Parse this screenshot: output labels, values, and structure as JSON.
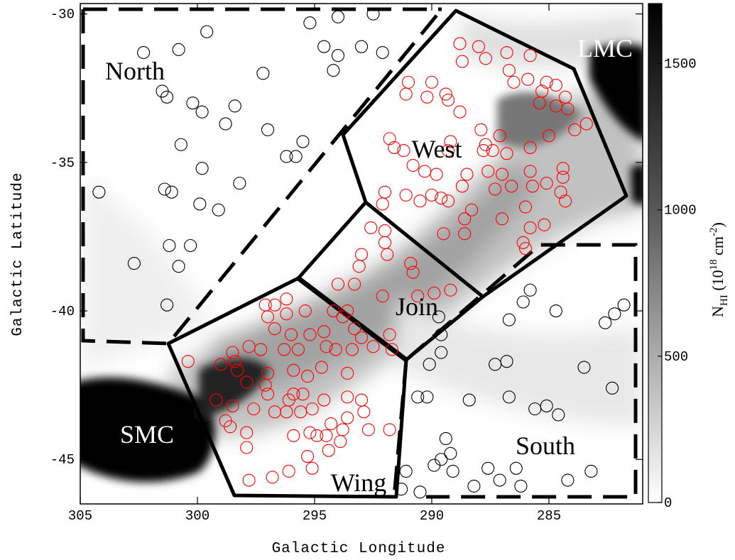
{
  "chart_data": {
    "type": "scatter",
    "x_label": "Galactic Longitude",
    "y_label": "Galactic Latitude",
    "xlim": [
      305,
      281
    ],
    "ylim": [
      -46.5,
      -29.65
    ],
    "xticks": [
      305,
      300,
      295,
      290,
      285
    ],
    "yticks": [
      -30,
      -35,
      -40,
      -45
    ],
    "region_labels": [
      "North",
      "LMC",
      "West",
      "Join",
      "SMC",
      "Wing",
      "South"
    ],
    "colorbar": {
      "label": [
        "N",
        "HI",
        " (10",
        "18",
        " cm",
        "-2",
        ")"
      ],
      "lim": [
        0,
        1705
      ],
      "ticks": [
        0,
        500,
        1000,
        1500
      ]
    },
    "series": [
      {
        "color": "#000000",
        "x": [
          304.2,
          302.3,
          301.5,
          301.3,
          300.8,
          299.6,
          300.2,
          299.8,
          298.8,
          298.4,
          297.0,
          297.2,
          300.7,
          299.8,
          301.4,
          301.1,
          299.9,
          299.1,
          298.2,
          296.2,
          295.8,
          295.5,
          302.7,
          301.2,
          300.3,
          300.8,
          301.3,
          295.2,
          294.0,
          292.5,
          294.6,
          294.0,
          293.0,
          292.1,
          294.2,
          285.8,
          286.1,
          286.7,
          284.7,
          282.6,
          282.2,
          281.8,
          283.5,
          282.3,
          286.8,
          287.3,
          289.7,
          289.6,
          289.6,
          290.1,
          290.6,
          290.2,
          288.4,
          286.7,
          284.6,
          285.6,
          285.1,
          289.4,
          289.2,
          289.6,
          291.1,
          289.9,
          291.3,
          290.5,
          288.2,
          287.6,
          287.1,
          286.4,
          286.2,
          284.2,
          283.2,
          289.1
        ],
        "y": [
          -36.0,
          -31.3,
          -32.6,
          -32.8,
          -31.2,
          -30.6,
          -33.0,
          -33.3,
          -33.7,
          -33.1,
          -33.9,
          -32.0,
          -34.4,
          -35.2,
          -35.9,
          -36.0,
          -36.4,
          -36.6,
          -35.7,
          -34.8,
          -34.8,
          -34.3,
          -38.4,
          -37.8,
          -37.8,
          -38.5,
          -39.8,
          -30.3,
          -30.1,
          -30.0,
          -31.1,
          -31.4,
          -31.1,
          -31.3,
          -31.9,
          -39.3,
          -39.7,
          -40.3,
          -40.0,
          -40.4,
          -40.1,
          -39.8,
          -41.9,
          -42.6,
          -41.7,
          -41.8,
          -40.2,
          -40.8,
          -41.4,
          -41.8,
          -42.9,
          -42.9,
          -43.0,
          -42.9,
          -43.5,
          -43.3,
          -43.2,
          -44.3,
          -44.8,
          -45.0,
          -45.4,
          -45.2,
          -46.0,
          -46.1,
          -45.9,
          -45.3,
          -45.7,
          -45.3,
          -45.9,
          -45.7,
          -45.4,
          -45.4
        ]
      },
      {
        "color": "#ff0000",
        "x": [
          288.8,
          288.0,
          286.8,
          285.8,
          288.7,
          287.7,
          286.7,
          286.5,
          285.9,
          285.1,
          284.7,
          285.3,
          284.3,
          284.2,
          285.4,
          284.7,
          283.4,
          283.9,
          285.0,
          285.8,
          287.1,
          287.9,
          287.7,
          287.8,
          287.4,
          286.8,
          289.2,
          289.3,
          289.4,
          289.3,
          291.0,
          291.1,
          290.0,
          290.2,
          288.8,
          291.8,
          291.6,
          291.2,
          290.8,
          290.3,
          289.8,
          288.5,
          287.6,
          287.0,
          285.8,
          285.1,
          285.7,
          286.6,
          287.3,
          288.7,
          289.6,
          290.5,
          291.1,
          292.0,
          292.1,
          290.0,
          289.3,
          288.3,
          288.6,
          288.6,
          289.5,
          286.0,
          285.2,
          285.8,
          286.0,
          284.4,
          284.4,
          284.5,
          284.3,
          287.0,
          286.1,
          292.6,
          292.0,
          292.0,
          291.9,
          293.0,
          290.9,
          290.8,
          293.1,
          294.0,
          293.3,
          292.1,
          290.6,
          289.9,
          289.2,
          293.6,
          293.3,
          291.8,
          294.2,
          297.1,
          296.2,
          296.7,
          296.2,
          297.0,
          296.7,
          296.0,
          295.4,
          295.2,
          294.6,
          294.5,
          293.8,
          293.0,
          292.5,
          291.7,
          293.4,
          294.1,
          295.7,
          296.3,
          297.3,
          297.8,
          298.5,
          298.4,
          298.3,
          297.0,
          295.9,
          295.3,
          294.7,
          293.6,
          297.9,
          297.1,
          297.0,
          295.9,
          295.5,
          294.6,
          293.6,
          293.0,
          296.1,
          296.2,
          295.1,
          297.6,
          298.5,
          298.8,
          299.2,
          297.9,
          297.9,
          296.7,
          295.6,
          295.2,
          295.9,
          294.5,
          294.3,
          293.6,
          292.9,
          292.7,
          293.8,
          294.4,
          294.9,
          295.1,
          296.1,
          296.8,
          297.8,
          295.3,
          293.9,
          291.8,
          300.4,
          299.0,
          298.6
        ],
        "y": [
          -31.0,
          -31.1,
          -31.3,
          -31.4,
          -31.6,
          -31.5,
          -31.9,
          -32.3,
          -32.2,
          -32.3,
          -32.4,
          -32.6,
          -32.8,
          -33.2,
          -33.0,
          -33.1,
          -33.7,
          -33.9,
          -34.1,
          -34.5,
          -34.1,
          -33.9,
          -34.4,
          -34.6,
          -34.6,
          -34.7,
          -34.3,
          -34.6,
          -32.7,
          -32.9,
          -32.3,
          -32.7,
          -32.3,
          -32.8,
          -33.3,
          -34.2,
          -34.5,
          -34.6,
          -35.1,
          -35.3,
          -35.4,
          -35.4,
          -35.3,
          -35.4,
          -35.3,
          -35.7,
          -35.8,
          -35.8,
          -35.9,
          -35.8,
          -36.2,
          -36.3,
          -36.1,
          -36.0,
          -36.4,
          -36.1,
          -36.3,
          -36.6,
          -36.9,
          -37.4,
          -37.4,
          -36.5,
          -37.1,
          -37.2,
          -37.9,
          -35.2,
          -35.5,
          -36.0,
          -36.3,
          -36.9,
          -37.7,
          -37.2,
          -37.3,
          -37.7,
          -38.1,
          -38.1,
          -38.4,
          -38.7,
          -38.5,
          -39.1,
          -39.1,
          -39.5,
          -39.5,
          -39.4,
          -39.3,
          -40.0,
          -40.6,
          -40.8,
          -40.0,
          -39.8,
          -39.6,
          -39.8,
          -40.1,
          -40.2,
          -40.6,
          -40.8,
          -40.0,
          -40.8,
          -40.7,
          -41.2,
          -40.2,
          -40.9,
          -41.2,
          -41.3,
          -41.3,
          -41.3,
          -41.3,
          -41.3,
          -41.3,
          -41.2,
          -41.4,
          -41.7,
          -42.0,
          -42.1,
          -42.0,
          -42.2,
          -41.9,
          -42.1,
          -42.4,
          -42.5,
          -42.8,
          -42.8,
          -42.8,
          -43.0,
          -42.9,
          -43.0,
          -43.0,
          -43.4,
          -43.3,
          -43.3,
          -43.2,
          -43.7,
          -43.0,
          -44.1,
          -44.6,
          -43.4,
          -43.4,
          -44.1,
          -44.2,
          -44.2,
          -43.8,
          -43.6,
          -43.4,
          -44.0,
          -44.0,
          -44.7,
          -44.2,
          -45.3,
          -45.4,
          -45.6,
          -45.7,
          -44.9,
          -44.4,
          -44.0,
          -41.7,
          -41.8,
          -43.9
        ]
      }
    ]
  }
}
